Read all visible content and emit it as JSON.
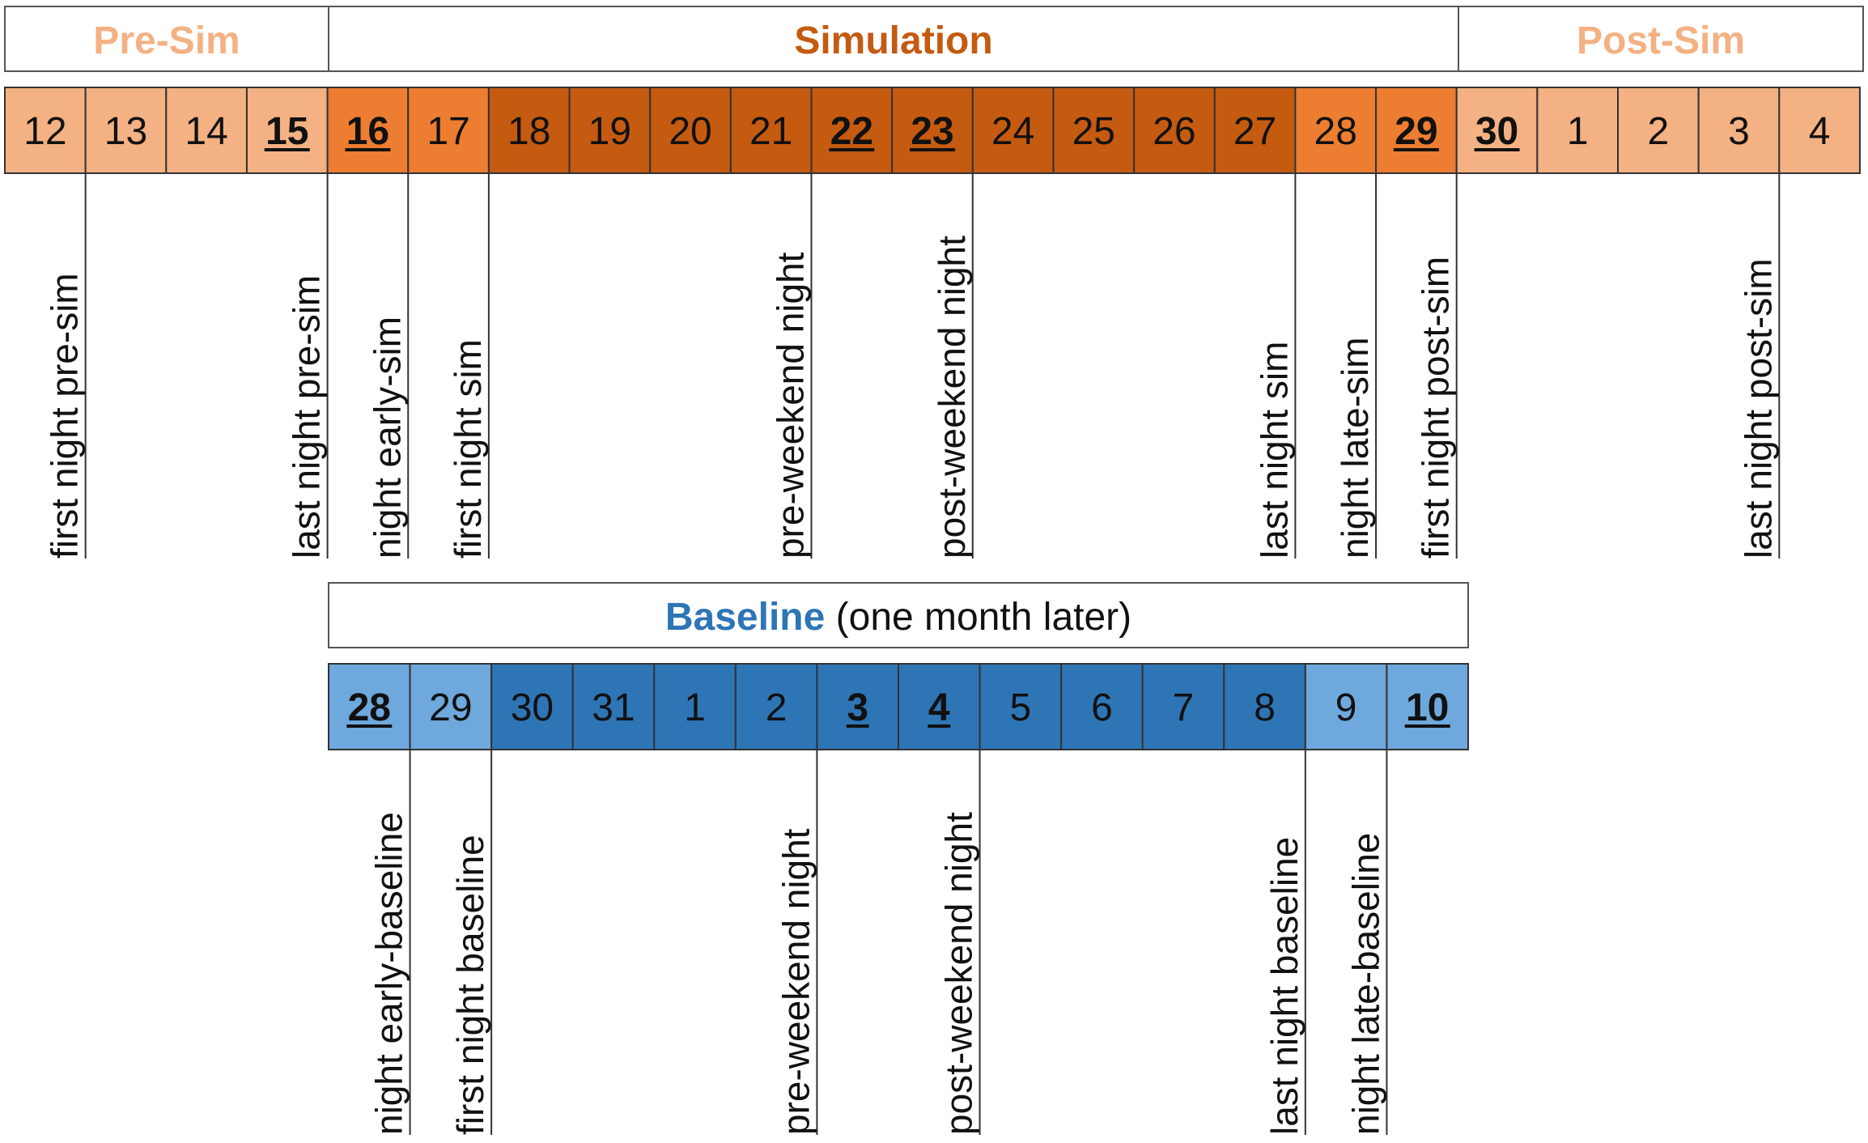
{
  "colors": {
    "light_orange": "#F4B183",
    "mid_orange": "#ED7D31",
    "dark_orange": "#C55A11",
    "light_blue": "#6FA8DC",
    "dark_blue": "#2E75B6",
    "pre_sim_text": "#F4B183",
    "simulation_text": "#C55A11",
    "post_sim_text": "#F4B183",
    "baseline_text": "#2E75B6"
  },
  "phases": [
    {
      "label": "Pre-Sim",
      "color": "pre_sim_text"
    },
    {
      "label": "Simulation",
      "color": "simulation_text"
    },
    {
      "label": "Post-Sim",
      "color": "post_sim_text"
    }
  ],
  "sim_days": [
    {
      "label": "12",
      "color": "light_orange",
      "bold": false
    },
    {
      "label": "13",
      "color": "light_orange",
      "bold": false
    },
    {
      "label": "14",
      "color": "light_orange",
      "bold": false
    },
    {
      "label": "15",
      "color": "light_orange",
      "bold": true
    },
    {
      "label": "16",
      "color": "mid_orange",
      "bold": true
    },
    {
      "label": "17",
      "color": "mid_orange",
      "bold": false
    },
    {
      "label": "18",
      "color": "dark_orange",
      "bold": false
    },
    {
      "label": "19",
      "color": "dark_orange",
      "bold": false
    },
    {
      "label": "20",
      "color": "dark_orange",
      "bold": false
    },
    {
      "label": "21",
      "color": "dark_orange",
      "bold": false
    },
    {
      "label": "22",
      "color": "dark_orange",
      "bold": true
    },
    {
      "label": "23",
      "color": "dark_orange",
      "bold": true
    },
    {
      "label": "24",
      "color": "dark_orange",
      "bold": false
    },
    {
      "label": "25",
      "color": "dark_orange",
      "bold": false
    },
    {
      "label": "26",
      "color": "dark_orange",
      "bold": false
    },
    {
      "label": "27",
      "color": "dark_orange",
      "bold": false
    },
    {
      "label": "28",
      "color": "mid_orange",
      "bold": false
    },
    {
      "label": "29",
      "color": "mid_orange",
      "bold": true
    },
    {
      "label": "30",
      "color": "light_orange",
      "bold": true
    },
    {
      "label": "1",
      "color": "light_orange",
      "bold": false
    },
    {
      "label": "2",
      "color": "light_orange",
      "bold": false
    },
    {
      "label": "3",
      "color": "light_orange",
      "bold": false
    },
    {
      "label": "4",
      "color": "light_orange",
      "bold": false
    }
  ],
  "sim_annotations": [
    {
      "label": "first night pre-sim",
      "boundary": 1
    },
    {
      "label": "last night pre-sim",
      "boundary": 4
    },
    {
      "label": "night early-sim",
      "boundary": 5
    },
    {
      "label": "first night sim",
      "boundary": 6
    },
    {
      "label": "pre-weekend night",
      "boundary": 10
    },
    {
      "label": "post-weekend night",
      "boundary": 12
    },
    {
      "label": "last night sim",
      "boundary": 16
    },
    {
      "label": "night late-sim",
      "boundary": 17
    },
    {
      "label": "first night post-sim",
      "boundary": 18
    },
    {
      "label": "last night post-sim",
      "boundary": 22
    }
  ],
  "baseline": {
    "title": "Baseline",
    "subtitle": " (one month later)"
  },
  "baseline_days": [
    {
      "label": "28",
      "color": "light_blue",
      "bold": true
    },
    {
      "label": "29",
      "color": "light_blue",
      "bold": false
    },
    {
      "label": "30",
      "color": "dark_blue",
      "bold": false
    },
    {
      "label": "31",
      "color": "dark_blue",
      "bold": false
    },
    {
      "label": "1",
      "color": "dark_blue",
      "bold": false
    },
    {
      "label": "2",
      "color": "dark_blue",
      "bold": false
    },
    {
      "label": "3",
      "color": "dark_blue",
      "bold": true
    },
    {
      "label": "4",
      "color": "dark_blue",
      "bold": true
    },
    {
      "label": "5",
      "color": "dark_blue",
      "bold": false
    },
    {
      "label": "6",
      "color": "dark_blue",
      "bold": false
    },
    {
      "label": "7",
      "color": "dark_blue",
      "bold": false
    },
    {
      "label": "8",
      "color": "dark_blue",
      "bold": false
    },
    {
      "label": "9",
      "color": "light_blue",
      "bold": false
    },
    {
      "label": "10",
      "color": "light_blue",
      "bold": true
    }
  ],
  "baseline_annotations": [
    {
      "label": "night early-baseline",
      "boundary": 1
    },
    {
      "label": "first night baseline",
      "boundary": 2
    },
    {
      "label": "pre-weekend night",
      "boundary": 6
    },
    {
      "label": "post-weekend night",
      "boundary": 8
    },
    {
      "label": "last night baseline",
      "boundary": 12
    },
    {
      "label": "night late-baseline",
      "boundary": 13
    }
  ]
}
